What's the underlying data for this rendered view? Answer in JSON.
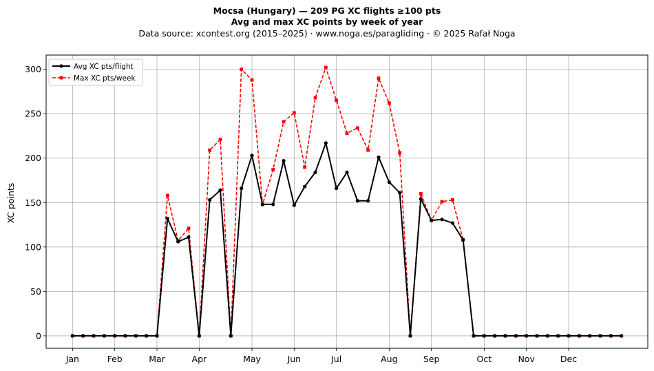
{
  "chart_data": {
    "type": "line",
    "title": "Mocsa (Hungary)  —  209 PG XC flights ≥100 pts",
    "subtitle": "Avg and max XC points by week of year",
    "source_line": "Data source: xcontest.org (2015–2025)  ·  www.noga.es/paragliding  ·  © 2025 Rafał Noga",
    "xlabel": "",
    "ylabel": "XC points",
    "ylim": [
      -14,
      316
    ],
    "xlim": [
      -2.5,
      54.5
    ],
    "yticks": [
      0,
      50,
      100,
      150,
      200,
      250,
      300
    ],
    "x_ticks": [
      {
        "label": "Jan",
        "x": 0
      },
      {
        "label": "Feb",
        "x": 4
      },
      {
        "label": "Mar",
        "x": 8
      },
      {
        "label": "Apr",
        "x": 12
      },
      {
        "label": "May",
        "x": 17
      },
      {
        "label": "Jun",
        "x": 21
      },
      {
        "label": "Jul",
        "x": 25
      },
      {
        "label": "Aug",
        "x": 30
      },
      {
        "label": "Sep",
        "x": 34
      },
      {
        "label": "Oct",
        "x": 39
      },
      {
        "label": "Nov",
        "x": 43
      },
      {
        "label": "Dec",
        "x": 47
      }
    ],
    "grid": true,
    "legend_position": "top-left",
    "series": [
      {
        "name": "Avg XC pts/flight",
        "color": "#000000",
        "style": "solid",
        "marker": "circle",
        "values": [
          0,
          0,
          0,
          0,
          0,
          0,
          0,
          0,
          0,
          132,
          106,
          111,
          0,
          153,
          164,
          0,
          166,
          203,
          148,
          148,
          197,
          147,
          168,
          184,
          217,
          166,
          184,
          152,
          152,
          201,
          173,
          161,
          0,
          154,
          130,
          131,
          127,
          108,
          0,
          0,
          0,
          0,
          0,
          0,
          0,
          0,
          0,
          0,
          0,
          0,
          0,
          0,
          0
        ]
      },
      {
        "name": "Max XC pts/week",
        "color": "#ff0000",
        "style": "dashed",
        "marker": "square",
        "values": [
          0,
          0,
          0,
          0,
          0,
          0,
          0,
          0,
          0,
          158,
          107,
          121,
          0,
          209,
          221,
          0,
          300,
          288,
          148,
          187,
          241,
          251,
          190,
          268,
          302,
          265,
          228,
          234,
          209,
          290,
          262,
          206,
          0,
          160,
          130,
          151,
          153,
          108,
          0,
          0,
          0,
          0,
          0,
          0,
          0,
          0,
          0,
          0,
          0,
          0,
          0,
          0,
          0
        ]
      }
    ]
  }
}
